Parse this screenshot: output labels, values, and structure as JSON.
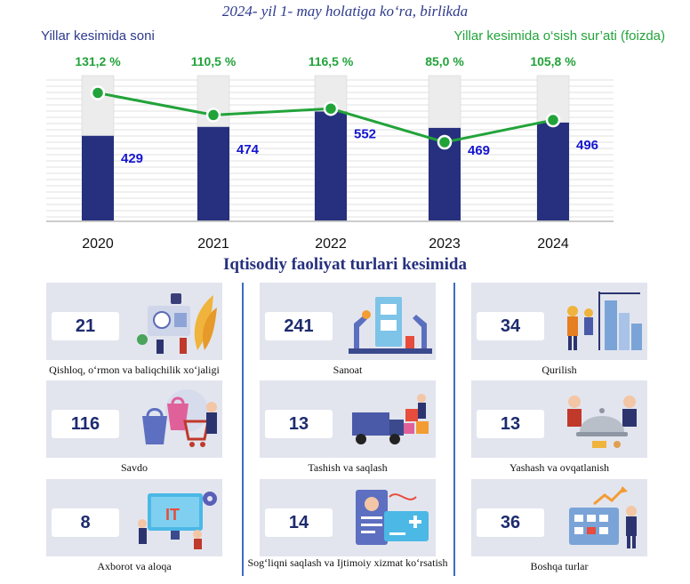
{
  "header": {
    "title": "2024- yil 1- may holatiga ko‘ra, birlikda",
    "left_subtitle": "Yillar kesimida soni",
    "right_subtitle": "Yillar kesimida o‘sish sur’ati (foizda)"
  },
  "chart_data": {
    "type": "bar",
    "categories": [
      "2020",
      "2021",
      "2022",
      "2023",
      "2024"
    ],
    "series": [
      {
        "type": "bar",
        "values": [
          429,
          474,
          552,
          469,
          496
        ],
        "data_labels": [
          "429",
          "474",
          "552",
          "469",
          "496"
        ]
      },
      {
        "type": "line",
        "values": [
          131.2,
          110.5,
          116.5,
          85.0,
          105.8
        ],
        "data_labels": [
          "131,2 %",
          "110,5 %",
          "116,5 %",
          "85,0 %",
          "105,8 %"
        ]
      }
    ],
    "colors": {
      "bar": "#26307e",
      "bar_background": "#ececec",
      "line": "#22a33a",
      "bar_label": "#1515d0",
      "line_label": "#22a33a"
    },
    "grid": true
  },
  "section_title": "Iqtisodiy faoliyat turlari kesimida",
  "cards": [
    {
      "value": "21",
      "label": "Qishloq, o‘rmon va baliqchilik xo‘jaligi",
      "icon": "agriculture-illustration"
    },
    {
      "value": "241",
      "label": "Sanoat",
      "icon": "industry-illustration"
    },
    {
      "value": "34",
      "label": "Qurilish",
      "icon": "construction-illustration"
    },
    {
      "value": "116",
      "label": "Savdo",
      "icon": "trade-illustration"
    },
    {
      "value": "13",
      "label": "Tashish va saqlash",
      "icon": "transport-illustration"
    },
    {
      "value": "13",
      "label": "Yashash va ovqatlanish",
      "icon": "hospitality-illustration"
    },
    {
      "value": "8",
      "label": "Axborot va aloqa",
      "icon": "it-illustration"
    },
    {
      "value": "14",
      "label": "Sog‘liqni saqlash va Ijtimoiy xizmat ko‘rsatish",
      "icon": "healthcare-illustration"
    },
    {
      "value": "36",
      "label": "Boshqa turlar",
      "icon": "other-services-illustration"
    }
  ]
}
